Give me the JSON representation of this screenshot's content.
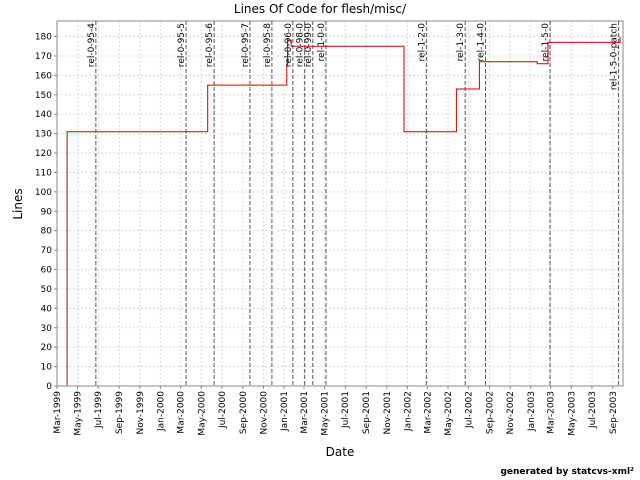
{
  "chart_data": {
    "type": "line",
    "title": "Lines Of Code for flesh/misc/",
    "xlabel": "Date",
    "ylabel": "Lines",
    "ylim": [
      0,
      188
    ],
    "yticks": [
      0,
      10,
      20,
      30,
      40,
      50,
      60,
      70,
      80,
      90,
      100,
      110,
      120,
      130,
      140,
      150,
      160,
      170,
      180
    ],
    "xlim": [
      "1999-03-01",
      "2003-10-01"
    ],
    "xticks": [
      {
        "date": "1999-03-01",
        "label": "Mar-1999"
      },
      {
        "date": "1999-05-01",
        "label": "May-1999"
      },
      {
        "date": "1999-07-01",
        "label": "Jul-1999"
      },
      {
        "date": "1999-09-01",
        "label": "Sep-1999"
      },
      {
        "date": "1999-11-01",
        "label": "Nov-1999"
      },
      {
        "date": "2000-01-01",
        "label": "Jan-2000"
      },
      {
        "date": "2000-03-01",
        "label": "Mar-2000"
      },
      {
        "date": "2000-05-01",
        "label": "May-2000"
      },
      {
        "date": "2000-07-01",
        "label": "Jul-2000"
      },
      {
        "date": "2000-09-01",
        "label": "Sep-2000"
      },
      {
        "date": "2000-11-01",
        "label": "Nov-2000"
      },
      {
        "date": "2001-01-01",
        "label": "Jan-2001"
      },
      {
        "date": "2001-03-01",
        "label": "Mar-2001"
      },
      {
        "date": "2001-05-01",
        "label": "May-2001"
      },
      {
        "date": "2001-07-01",
        "label": "Jul-2001"
      },
      {
        "date": "2001-09-01",
        "label": "Sep-2001"
      },
      {
        "date": "2001-11-01",
        "label": "Nov-2001"
      },
      {
        "date": "2002-01-01",
        "label": "Jan-2002"
      },
      {
        "date": "2002-03-01",
        "label": "Mar-2002"
      },
      {
        "date": "2002-05-01",
        "label": "May-2002"
      },
      {
        "date": "2002-07-01",
        "label": "Jul-2002"
      },
      {
        "date": "2002-09-01",
        "label": "Sep-2002"
      },
      {
        "date": "2002-11-01",
        "label": "Nov-2002"
      },
      {
        "date": "2003-01-01",
        "label": "Jan-2003"
      },
      {
        "date": "2003-03-01",
        "label": "Mar-2003"
      },
      {
        "date": "2003-05-01",
        "label": "May-2003"
      },
      {
        "date": "2003-07-01",
        "label": "Jul-2003"
      },
      {
        "date": "2003-09-01",
        "label": "Sep-2003"
      }
    ],
    "series_color": "#cc0000",
    "grid": true,
    "steps": [
      {
        "x": "1999-03-31",
        "y": 0
      },
      {
        "x": "1999-03-31",
        "y": 131
      },
      {
        "x": "2000-05-20",
        "y": 131
      },
      {
        "x": "2000-05-20",
        "y": 155
      },
      {
        "x": "2001-01-09",
        "y": 155
      },
      {
        "x": "2001-01-09",
        "y": 165
      },
      {
        "x": "2001-01-11",
        "y": 165
      },
      {
        "x": "2001-01-11",
        "y": 178
      },
      {
        "x": "2001-01-22",
        "y": 178
      },
      {
        "x": "2001-01-22",
        "y": 175
      },
      {
        "x": "2001-12-22",
        "y": 175
      },
      {
        "x": "2001-12-22",
        "y": 131
      },
      {
        "x": "2002-05-26",
        "y": 131
      },
      {
        "x": "2002-05-26",
        "y": 153
      },
      {
        "x": "2002-08-02",
        "y": 153
      },
      {
        "x": "2002-08-02",
        "y": 167
      },
      {
        "x": "2003-01-20",
        "y": 167
      },
      {
        "x": "2003-01-20",
        "y": 166
      },
      {
        "x": "2003-02-21",
        "y": 166
      },
      {
        "x": "2003-02-21",
        "y": 177
      },
      {
        "x": "2003-09-22",
        "y": 177
      },
      {
        "x": "2003-09-22",
        "y": 180
      }
    ],
    "releases": [
      {
        "date": "1999-06-24",
        "label": "rel-0-95-4"
      },
      {
        "date": "2000-03-17",
        "label": "rel-0-95-5"
      },
      {
        "date": "2000-06-08",
        "label": "rel-0-95-6"
      },
      {
        "date": "2000-09-22",
        "label": "rel-0-95-7"
      },
      {
        "date": "2000-11-26",
        "label": "rel-0-95-8"
      },
      {
        "date": "2001-01-27",
        "label": "rel-0-96-0"
      },
      {
        "date": "2001-03-03",
        "label": "rel-0-98-0"
      },
      {
        "date": "2001-03-27",
        "label": "rel-0-99-0"
      },
      {
        "date": "2001-05-05",
        "label": "rel-1-0-0"
      },
      {
        "date": "2002-02-26",
        "label": "rel-1-2-0"
      },
      {
        "date": "2002-06-21",
        "label": "rel-1-3-0"
      },
      {
        "date": "2002-08-20",
        "label": "rel-1-4-0"
      },
      {
        "date": "2003-02-27",
        "label": "rel-1-5-0"
      },
      {
        "date": "2003-09-18",
        "label": "rel-1-5-0-patch"
      }
    ]
  },
  "footer": {
    "credit": "generated by statcvs-xml²"
  }
}
